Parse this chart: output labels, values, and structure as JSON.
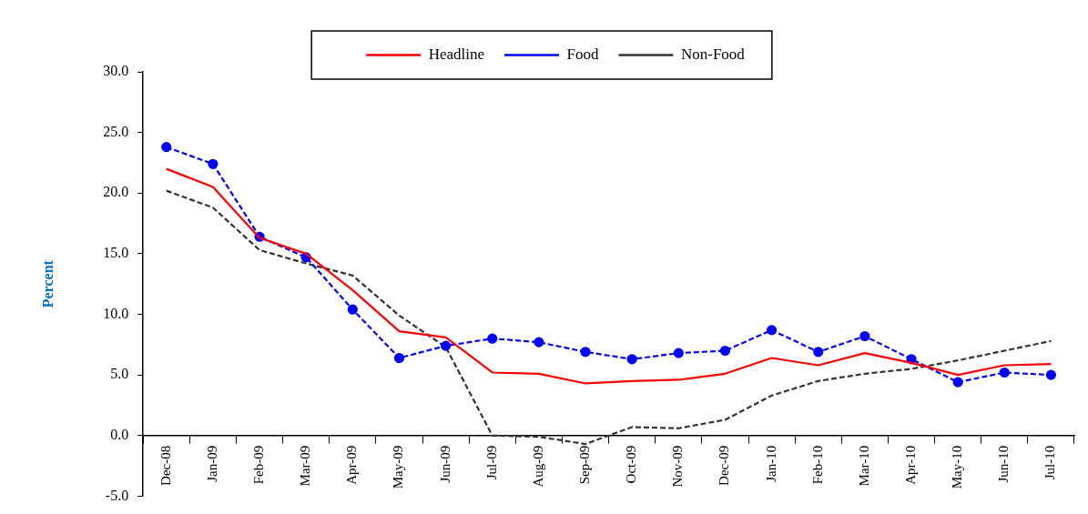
{
  "chart_data": {
    "type": "line",
    "ylabel": "Percent",
    "categories": [
      "Dec-08",
      "Jan-09",
      "Feb-09",
      "Mar-09",
      "Apr-09",
      "May-09",
      "Jun-09",
      "Jul-09",
      "Aug-09",
      "Sep-09",
      "Oct-09",
      "Nov-09",
      "Dec-09",
      "Jan-10",
      "Feb-10",
      "Mar-10",
      "Apr-10",
      "May-10",
      "Jun-10",
      "Jul-10"
    ],
    "series": [
      {
        "name": "Headline",
        "color": "#ff0000",
        "line_style": "solid",
        "marker": "none",
        "values": [
          22.0,
          20.5,
          16.3,
          15.0,
          12.0,
          8.6,
          8.1,
          5.2,
          5.1,
          4.3,
          4.5,
          4.6,
          5.1,
          6.4,
          5.8,
          6.8,
          6.0,
          5.0,
          5.8,
          5.9
        ]
      },
      {
        "name": "Food",
        "color": "#0000ff",
        "line_style": "dashed",
        "marker": "circle",
        "values": [
          23.8,
          22.4,
          16.4,
          14.7,
          10.4,
          6.4,
          7.4,
          8.0,
          7.7,
          6.9,
          6.3,
          6.8,
          7.0,
          8.7,
          6.9,
          8.2,
          6.3,
          4.4,
          5.2,
          5.0
        ]
      },
      {
        "name": "Non-Food",
        "color": "#333333",
        "line_style": "dashed",
        "marker": "none",
        "values": [
          20.2,
          18.8,
          15.3,
          14.2,
          13.2,
          9.9,
          7.3,
          0.0,
          -0.1,
          -0.7,
          0.7,
          0.6,
          1.3,
          3.3,
          4.5,
          5.1,
          5.5,
          6.2,
          7.0,
          7.8
        ]
      }
    ],
    "ylim": [
      -5,
      30
    ],
    "yticks": [
      {
        "value": -5,
        "label": "-5.0"
      },
      {
        "value": 0,
        "label": "0.0"
      },
      {
        "value": 5,
        "label": "5.0"
      },
      {
        "value": 10,
        "label": "10.0"
      },
      {
        "value": 15,
        "label": "15.0"
      },
      {
        "value": 20,
        "label": "20.0"
      },
      {
        "value": 25,
        "label": "25.0"
      },
      {
        "value": 30,
        "label": "30.0"
      }
    ],
    "grid": false,
    "legend": "top"
  }
}
